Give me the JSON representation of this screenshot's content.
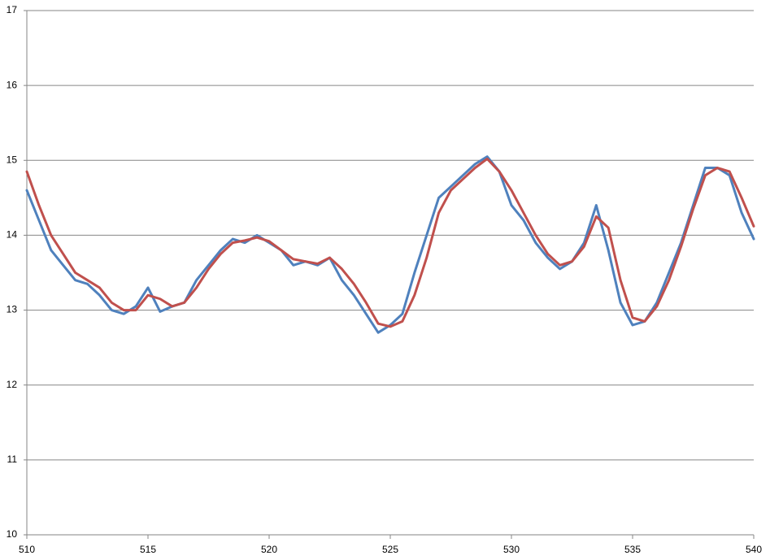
{
  "chart_data": {
    "type": "line",
    "x": [
      510,
      510.5,
      511,
      511.5,
      512,
      512.5,
      513,
      513.5,
      514,
      514.5,
      515,
      515.5,
      516,
      516.5,
      517,
      517.5,
      518,
      518.5,
      519,
      519.5,
      520,
      520.5,
      521,
      521.5,
      522,
      522.5,
      523,
      523.5,
      524,
      524.5,
      525,
      525.5,
      526,
      526.5,
      527,
      527.5,
      528,
      528.5,
      529,
      529.5,
      530,
      530.5,
      531,
      531.5,
      532,
      532.5,
      533,
      533.5,
      534,
      534.5,
      535,
      535.5,
      536,
      536.5,
      537,
      537.5,
      538,
      538.5,
      539,
      539.5,
      540
    ],
    "series": [
      {
        "color": "#4f81bd",
        "values": [
          14.6,
          14.2,
          13.8,
          13.6,
          13.4,
          13.35,
          13.2,
          13.0,
          12.95,
          13.05,
          13.3,
          12.98,
          13.05,
          13.1,
          13.4,
          13.6,
          13.8,
          13.95,
          13.9,
          14.0,
          13.9,
          13.8,
          13.6,
          13.65,
          13.6,
          13.7,
          13.4,
          13.2,
          12.95,
          12.7,
          12.8,
          12.95,
          13.5,
          14.0,
          14.5,
          14.65,
          14.8,
          14.95,
          15.05,
          14.85,
          14.4,
          14.2,
          13.9,
          13.7,
          13.55,
          13.65,
          13.9,
          14.4,
          13.8,
          13.1,
          12.8,
          12.85,
          13.1,
          13.5,
          13.9,
          14.4,
          14.9,
          14.9,
          14.8,
          14.3,
          13.95
        ]
      },
      {
        "color": "#c0504d",
        "values": [
          14.85,
          14.4,
          14.0,
          13.75,
          13.5,
          13.4,
          13.3,
          13.1,
          13.0,
          13.0,
          13.2,
          13.15,
          13.05,
          13.1,
          13.3,
          13.55,
          13.75,
          13.9,
          13.93,
          13.97,
          13.92,
          13.8,
          13.68,
          13.65,
          13.62,
          13.7,
          13.55,
          13.35,
          13.1,
          12.82,
          12.78,
          12.85,
          13.2,
          13.7,
          14.3,
          14.6,
          14.75,
          14.9,
          15.02,
          14.85,
          14.6,
          14.3,
          14.0,
          13.75,
          13.6,
          13.65,
          13.85,
          14.25,
          14.1,
          13.4,
          12.9,
          12.85,
          13.05,
          13.4,
          13.85,
          14.35,
          14.8,
          14.9,
          14.85,
          14.5,
          14.12
        ]
      }
    ],
    "xlim": [
      510,
      540
    ],
    "xticks": [
      510,
      515,
      520,
      525,
      530,
      535,
      540
    ],
    "ylim": [
      10,
      17
    ],
    "yticks": [
      10,
      11,
      12,
      13,
      14,
      15,
      16,
      17
    ],
    "grid": true
  }
}
